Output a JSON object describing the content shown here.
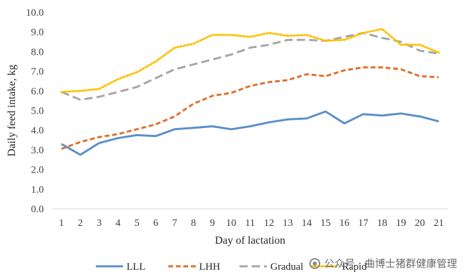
{
  "chart_data": {
    "type": "line",
    "xlabel": "Day of lactation",
    "ylabel": "Daily feed intake, kg",
    "ylim": [
      0,
      10
    ],
    "ytick_step": 1,
    "ytick_labels": [
      "0.0",
      "1.0",
      "2.0",
      "3.0",
      "4.0",
      "5.0",
      "6.0",
      "7.0",
      "8.0",
      "9.0",
      "10.0"
    ],
    "categories": [
      "1",
      "2",
      "3",
      "4",
      "5",
      "6",
      "7",
      "8",
      "9",
      "10",
      "11",
      "12",
      "13",
      "14",
      "15",
      "16",
      "17",
      "18",
      "19",
      "20",
      "21"
    ],
    "legend_position": "bottom",
    "grid": false,
    "series": [
      {
        "name": "LLL",
        "color": "#5b8fc9",
        "style": "solid",
        "values": [
          3.3,
          2.75,
          3.35,
          3.6,
          3.75,
          3.7,
          4.05,
          4.12,
          4.2,
          4.05,
          4.2,
          4.4,
          4.55,
          4.6,
          4.95,
          4.35,
          4.82,
          4.75,
          4.85,
          4.7,
          4.45
        ]
      },
      {
        "name": "LHH",
        "color": "#e06f2a",
        "style": "dash",
        "values": [
          3.05,
          3.4,
          3.65,
          3.8,
          4.05,
          4.3,
          4.7,
          5.35,
          5.75,
          5.9,
          6.25,
          6.45,
          6.55,
          6.85,
          6.75,
          7.05,
          7.2,
          7.2,
          7.1,
          6.75,
          6.7
        ]
      },
      {
        "name": "Gradual",
        "color": "#a6a6a6",
        "style": "longdash",
        "values": [
          5.95,
          5.55,
          5.7,
          5.95,
          6.2,
          6.65,
          7.1,
          7.35,
          7.6,
          7.85,
          8.2,
          8.35,
          8.6,
          8.6,
          8.55,
          8.75,
          8.95,
          8.7,
          8.5,
          8.05,
          7.9
        ]
      },
      {
        "name": "Rapid",
        "color": "#ffc000",
        "style": "dot",
        "values": [
          5.95,
          6.0,
          6.1,
          6.6,
          6.95,
          7.5,
          8.2,
          8.4,
          8.85,
          8.85,
          8.75,
          8.95,
          8.8,
          8.85,
          8.55,
          8.6,
          8.95,
          9.15,
          8.35,
          8.35,
          7.95
        ]
      }
    ]
  },
  "watermark": {
    "text": "公众号 · 曲博士猪群健康管理",
    "icon": "wechat-icon"
  }
}
